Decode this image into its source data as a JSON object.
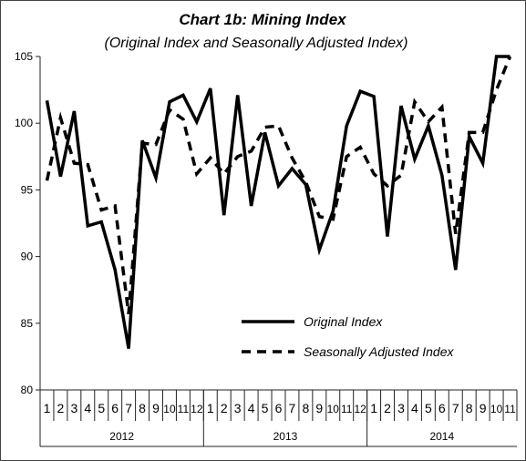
{
  "chart_data": {
    "type": "line",
    "title": "Chart 1b: Mining Index",
    "subtitle": "(Original Index and Seasonally Adjusted Index)",
    "ylim": [
      80,
      105
    ],
    "yticks": [
      "80",
      "85",
      "90",
      "95",
      "100",
      "105"
    ],
    "grid": false,
    "legend_position": "bottom-right",
    "month_labels": [
      "1",
      "2",
      "3",
      "4",
      "5",
      "6",
      "7",
      "8",
      "9",
      "10",
      "11",
      "12",
      "1",
      "2",
      "3",
      "4",
      "5",
      "6",
      "7",
      "8",
      "9",
      "10",
      "11",
      "12",
      "1",
      "2",
      "3",
      "4",
      "5",
      "6",
      "7",
      "8",
      "9",
      "10",
      "11"
    ],
    "years": [
      {
        "label": "2012",
        "count": 12
      },
      {
        "label": "2013",
        "count": 12
      },
      {
        "label": "2014",
        "count": 11
      }
    ],
    "series": [
      {
        "name": "Original Index",
        "style": "solid",
        "values": [
          101.7,
          96.0,
          100.9,
          92.3,
          92.6,
          89.0,
          83.1,
          98.7,
          95.9,
          101.6,
          102.1,
          100.1,
          102.6,
          93.1,
          102.1,
          93.8,
          99.3,
          95.3,
          96.6,
          95.4,
          90.5,
          93.4,
          99.8,
          102.4,
          102.0,
          91.5,
          101.3,
          97.3,
          99.8,
          96.1,
          89.0,
          99.0,
          97.0,
          105.0,
          105.0
        ]
      },
      {
        "name": "Seasonally Adjusted Index",
        "style": "dashed",
        "values": [
          95.7,
          100.4,
          97.0,
          96.9,
          93.5,
          93.8,
          85.7,
          98.5,
          98.4,
          101.0,
          100.3,
          96.2,
          97.4,
          96.2,
          97.5,
          97.9,
          99.7,
          99.8,
          97.4,
          95.6,
          93.0,
          92.8,
          97.5,
          98.2,
          96.2,
          95.3,
          96.1,
          101.6,
          100.1,
          101.2,
          91.7,
          99.3,
          99.3,
          102.5,
          105.0
        ]
      }
    ]
  }
}
